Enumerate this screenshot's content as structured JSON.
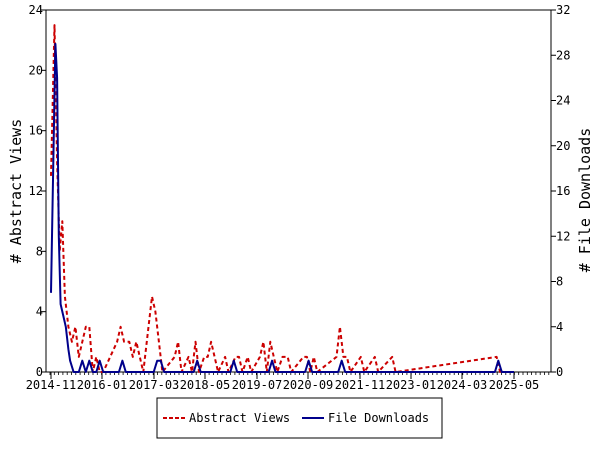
{
  "chart_data": {
    "type": "line",
    "ylabel_left": "# Abstract Views",
    "ylabel_right": "# File Downloads",
    "ylim_left": [
      0,
      24
    ],
    "ylim_right": [
      0,
      32
    ],
    "yticks_left": [
      "0",
      "4",
      "8",
      "12",
      "16",
      "20",
      "24"
    ],
    "yticks_right": [
      "0",
      "4",
      "8",
      "12",
      "16",
      "20",
      "24",
      "28",
      "32"
    ],
    "xtick_labels": [
      "2014-11",
      "2016-01",
      "2017-03",
      "2018-05",
      "2019-07",
      "2020-09",
      "2021-11",
      "2023-01",
      "2024-03",
      "2025-05"
    ],
    "grid": false,
    "legend_position": "bottom-center",
    "series": [
      {
        "name": "Abstract Views",
        "axis": "left",
        "color": "#cc0000",
        "style": "dashed",
        "points": [
          [
            0.0,
            13
          ],
          [
            0.2,
            23
          ],
          [
            0.35,
            14
          ],
          [
            0.5,
            8
          ],
          [
            0.65,
            10
          ],
          [
            0.8,
            5
          ],
          [
            1.0,
            3
          ],
          [
            1.2,
            2
          ],
          [
            1.4,
            3
          ],
          [
            1.6,
            1
          ],
          [
            1.8,
            2
          ],
          [
            2.0,
            3
          ],
          [
            2.2,
            3
          ],
          [
            2.4,
            0
          ],
          [
            2.6,
            1
          ],
          [
            2.8,
            0
          ],
          [
            3.0,
            0
          ],
          [
            3.8,
            2
          ],
          [
            4.0,
            3
          ],
          [
            4.2,
            2
          ],
          [
            4.5,
            2
          ],
          [
            4.7,
            1
          ],
          [
            4.9,
            2
          ],
          [
            5.1,
            1
          ],
          [
            5.3,
            0
          ],
          [
            5.6,
            3
          ],
          [
            5.8,
            5
          ],
          [
            6.0,
            4
          ],
          [
            6.2,
            2
          ],
          [
            6.4,
            0
          ],
          [
            7.1,
            1
          ],
          [
            7.3,
            2
          ],
          [
            7.5,
            0
          ],
          [
            7.9,
            1
          ],
          [
            8.1,
            0
          ],
          [
            8.3,
            2
          ],
          [
            8.5,
            0
          ],
          [
            8.8,
            1
          ],
          [
            9.0,
            1
          ],
          [
            9.2,
            2
          ],
          [
            9.4,
            1
          ],
          [
            9.6,
            0
          ],
          [
            10.0,
            1
          ],
          [
            10.2,
            0
          ],
          [
            10.6,
            1
          ],
          [
            10.8,
            1
          ],
          [
            11.0,
            0
          ],
          [
            11.3,
            1
          ],
          [
            11.5,
            0
          ],
          [
            12.0,
            1
          ],
          [
            12.2,
            2
          ],
          [
            12.4,
            0
          ],
          [
            12.6,
            2
          ],
          [
            12.8,
            1
          ],
          [
            13.0,
            0
          ],
          [
            13.3,
            1
          ],
          [
            13.6,
            1
          ],
          [
            13.8,
            0
          ],
          [
            14.5,
            1
          ],
          [
            14.7,
            1
          ],
          [
            14.9,
            0
          ],
          [
            15.1,
            1
          ],
          [
            15.3,
            0
          ],
          [
            16.4,
            1
          ],
          [
            16.6,
            3
          ],
          [
            16.8,
            1
          ],
          [
            17.0,
            1
          ],
          [
            17.2,
            0
          ],
          [
            17.8,
            1
          ],
          [
            18.0,
            0
          ],
          [
            18.6,
            1
          ],
          [
            18.8,
            0
          ],
          [
            19.6,
            1
          ],
          [
            19.8,
            0
          ],
          [
            25.6,
            1
          ],
          [
            25.8,
            0
          ],
          [
            26.6,
            0
          ]
        ]
      },
      {
        "name": "File Downloads",
        "axis": "right",
        "color": "#00008b",
        "style": "solid",
        "points": [
          [
            0.0,
            7
          ],
          [
            0.15,
            20
          ],
          [
            0.25,
            29
          ],
          [
            0.35,
            26
          ],
          [
            0.45,
            12
          ],
          [
            0.55,
            6
          ],
          [
            0.7,
            5
          ],
          [
            0.85,
            4
          ],
          [
            1.0,
            2
          ],
          [
            1.1,
            1
          ],
          [
            1.3,
            0
          ],
          [
            1.6,
            0
          ],
          [
            1.8,
            1
          ],
          [
            2.0,
            0
          ],
          [
            2.2,
            1
          ],
          [
            2.4,
            0
          ],
          [
            2.6,
            0
          ],
          [
            2.8,
            1
          ],
          [
            3.0,
            0
          ],
          [
            3.9,
            0
          ],
          [
            4.1,
            1
          ],
          [
            4.3,
            0
          ],
          [
            5.9,
            0
          ],
          [
            6.1,
            1
          ],
          [
            6.3,
            1
          ],
          [
            6.5,
            0
          ],
          [
            8.2,
            0
          ],
          [
            8.4,
            1
          ],
          [
            8.6,
            0
          ],
          [
            10.3,
            0
          ],
          [
            10.5,
            1
          ],
          [
            10.7,
            0
          ],
          [
            12.5,
            0
          ],
          [
            12.7,
            1
          ],
          [
            12.9,
            0
          ],
          [
            14.6,
            0
          ],
          [
            14.8,
            1
          ],
          [
            15.0,
            0
          ],
          [
            16.5,
            0
          ],
          [
            16.7,
            1
          ],
          [
            16.9,
            0
          ],
          [
            25.5,
            0
          ],
          [
            25.7,
            1
          ],
          [
            25.9,
            0
          ],
          [
            26.6,
            0
          ]
        ]
      }
    ]
  }
}
